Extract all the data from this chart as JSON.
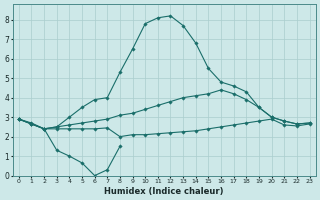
{
  "xlabel": "Humidex (Indice chaleur)",
  "background_color": "#cde8e8",
  "grid_color": "#aacece",
  "line_color": "#1a6e6a",
  "xlim": [
    -0.5,
    23.5
  ],
  "ylim": [
    0,
    8.8
  ],
  "xticks": [
    0,
    1,
    2,
    3,
    4,
    5,
    6,
    7,
    8,
    9,
    10,
    11,
    12,
    13,
    14,
    15,
    16,
    17,
    18,
    19,
    20,
    21,
    22,
    23
  ],
  "yticks": [
    0,
    1,
    2,
    3,
    4,
    5,
    6,
    7,
    8
  ],
  "series": [
    {
      "x": [
        0,
        1,
        2,
        3,
        4,
        5,
        6,
        7,
        8
      ],
      "y": [
        2.9,
        2.7,
        2.4,
        1.3,
        1.0,
        0.65,
        0.0,
        0.3,
        1.5
      ]
    },
    {
      "x": [
        0,
        1,
        2,
        3,
        4,
        5,
        6,
        7,
        8,
        9,
        10,
        11,
        12,
        13,
        14,
        15,
        16,
        17,
        18,
        19,
        20,
        21,
        22,
        23
      ],
      "y": [
        2.9,
        2.65,
        2.4,
        2.5,
        3.0,
        3.5,
        3.9,
        4.0,
        5.3,
        6.5,
        7.8,
        8.1,
        8.2,
        7.7,
        6.8,
        5.5,
        4.8,
        4.6,
        4.3,
        3.5,
        3.0,
        2.8,
        2.65,
        2.7
      ]
    },
    {
      "x": [
        0,
        1,
        2,
        3,
        4,
        5,
        6,
        7,
        8,
        9,
        10,
        11,
        12,
        13,
        14,
        15,
        16,
        17,
        18,
        19,
        20,
        21,
        22,
        23
      ],
      "y": [
        2.9,
        2.65,
        2.4,
        2.5,
        2.6,
        2.7,
        2.8,
        2.9,
        3.1,
        3.2,
        3.4,
        3.6,
        3.8,
        4.0,
        4.1,
        4.2,
        4.4,
        4.2,
        3.9,
        3.5,
        3.0,
        2.8,
        2.65,
        2.7
      ]
    },
    {
      "x": [
        0,
        1,
        2,
        3,
        4,
        5,
        6,
        7,
        8,
        9,
        10,
        11,
        12,
        13,
        14,
        15,
        16,
        17,
        18,
        19,
        20,
        21,
        22,
        23
      ],
      "y": [
        2.9,
        2.65,
        2.4,
        2.4,
        2.4,
        2.4,
        2.4,
        2.45,
        2.0,
        2.1,
        2.1,
        2.15,
        2.2,
        2.25,
        2.3,
        2.4,
        2.5,
        2.6,
        2.7,
        2.8,
        2.9,
        2.6,
        2.55,
        2.65
      ]
    }
  ]
}
